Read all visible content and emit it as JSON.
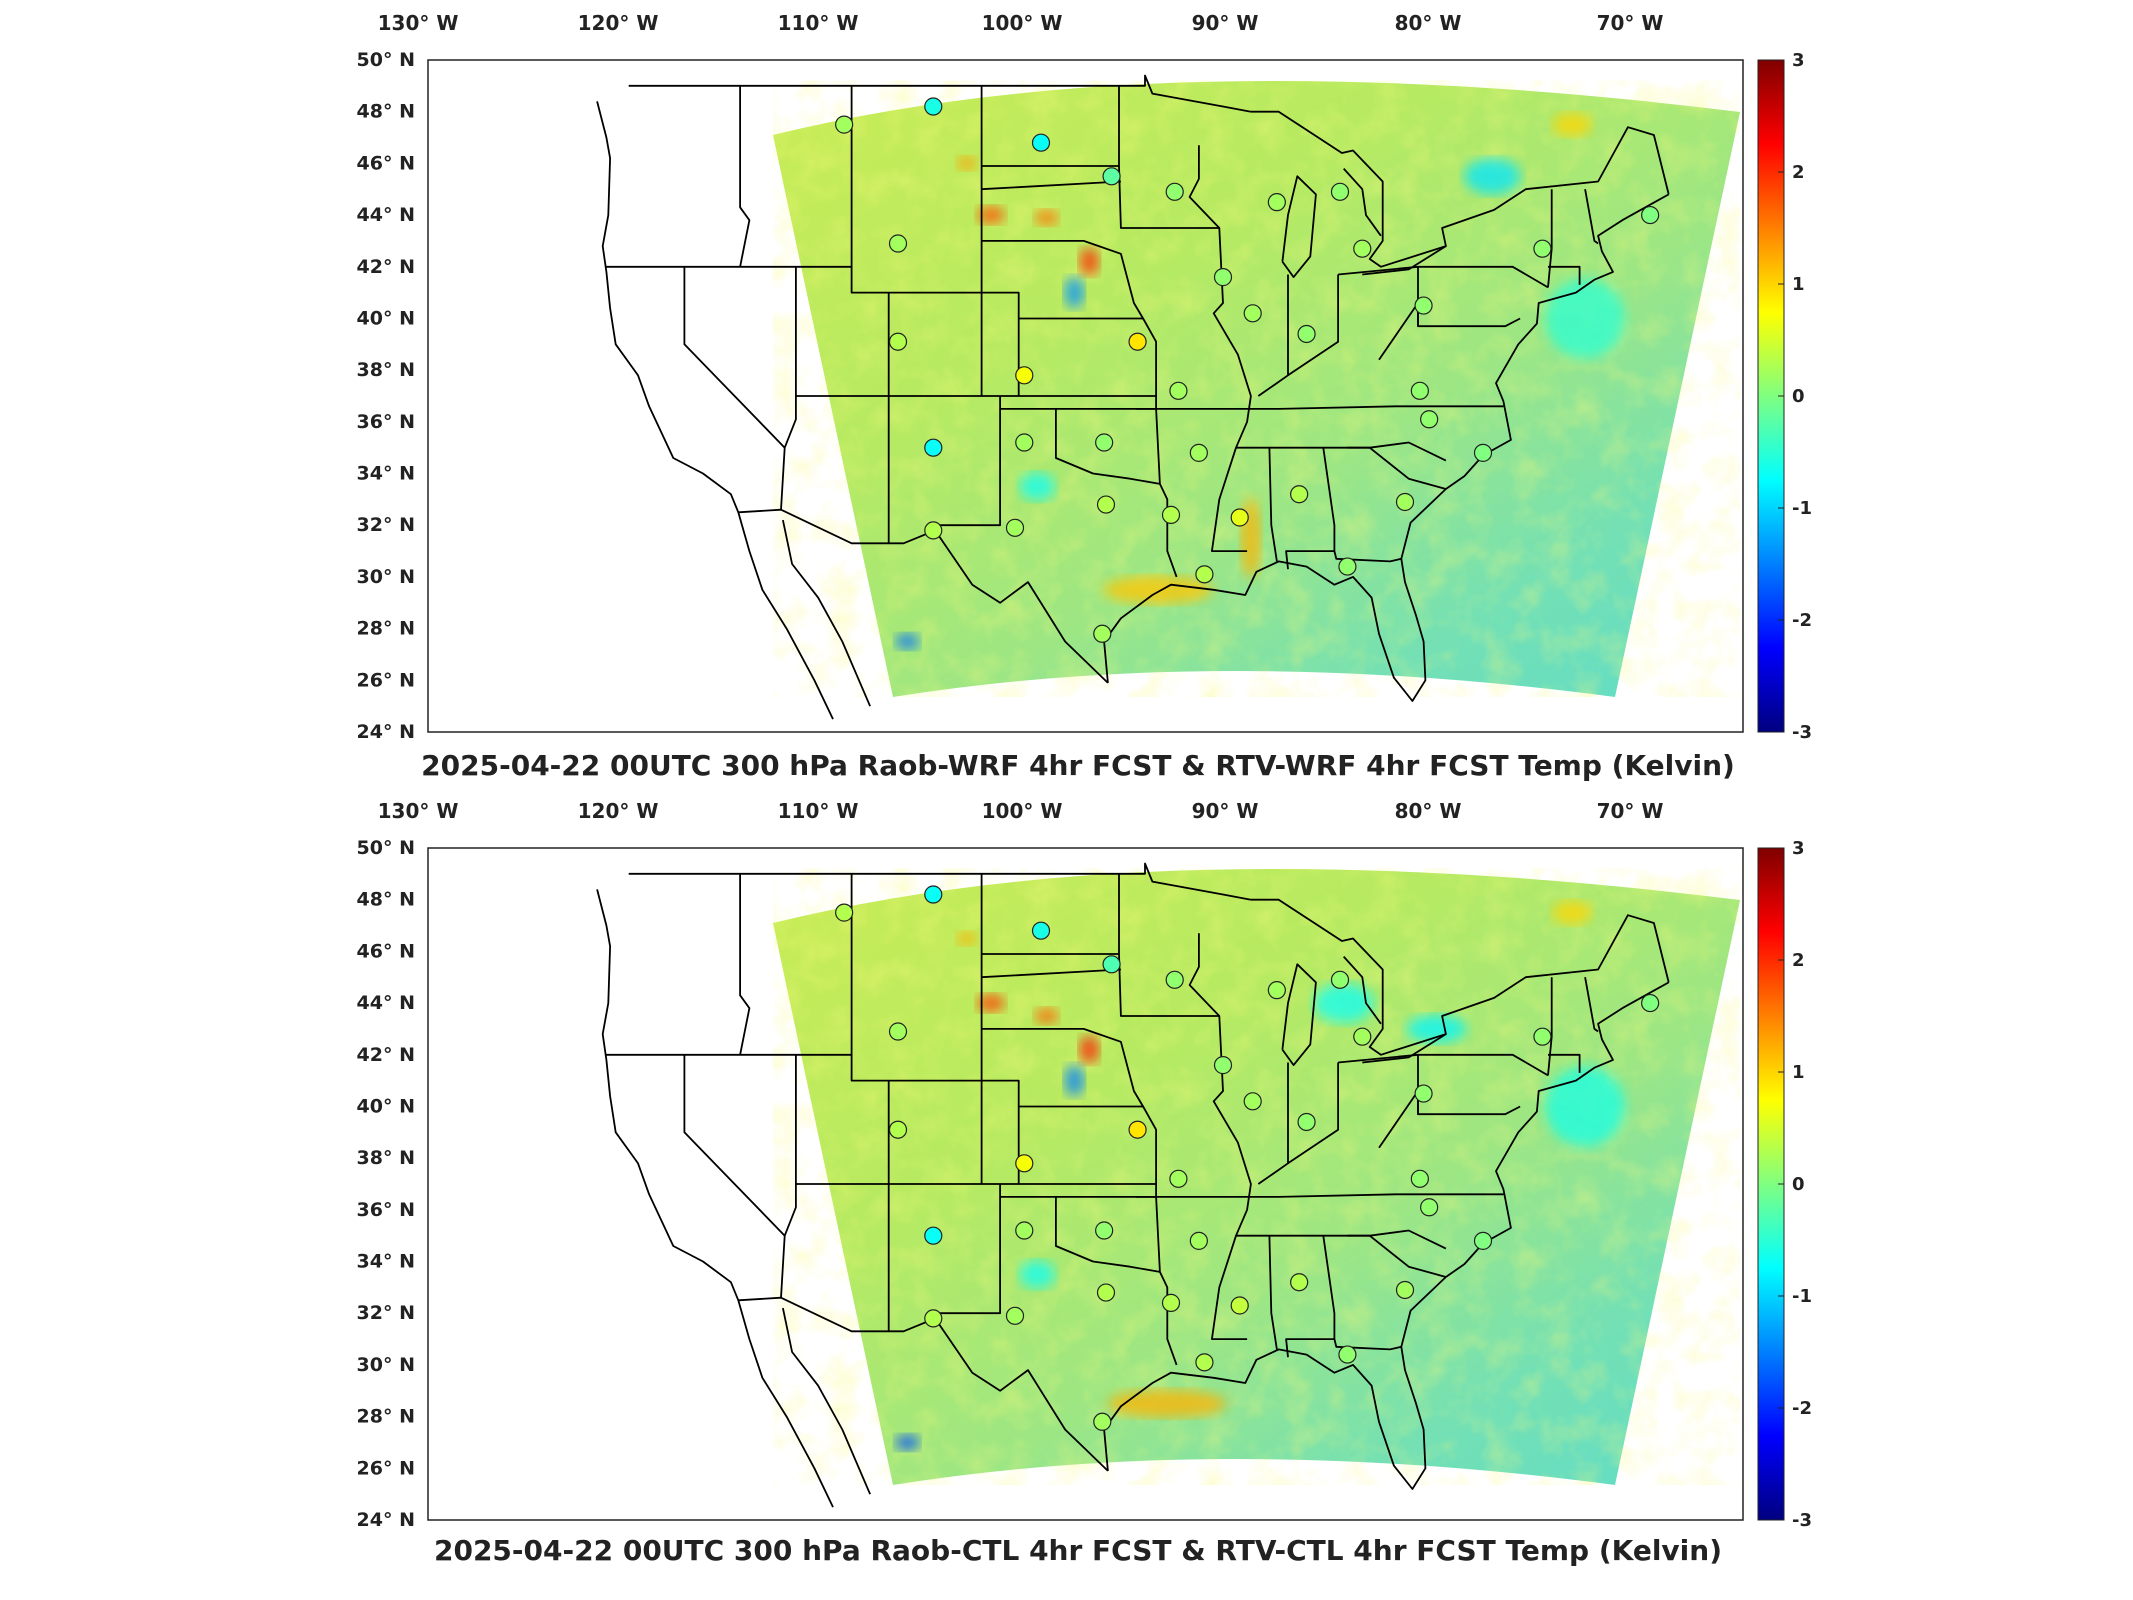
{
  "panels": [
    {
      "title": "2025-04-22 00UTC 300 hPa Raob-WRF 4hr FCST & RTV-WRF 4hr FCST Temp (Kelvin)"
    },
    {
      "title": "2025-04-22 00UTC 300 hPa Raob-CTL 4hr FCST & RTV-CTL 4hr FCST Temp (Kelvin)"
    }
  ],
  "map": {
    "region": "CONUS",
    "projection": "Lambert conformal",
    "extent": {
      "lon": [
        -133,
        -63
      ],
      "lat": [
        24,
        50
      ]
    },
    "lon_ticks": [
      "130",
      "120",
      "110",
      "100",
      "90",
      "80",
      "70"
    ],
    "lon_suffix": "W",
    "lat_ticks": [
      "50",
      "48",
      "46",
      "44",
      "42",
      "40",
      "38",
      "36",
      "34",
      "32",
      "30",
      "28",
      "26",
      "24"
    ],
    "lat_suffix": "N",
    "degree_symbol": "°",
    "ocean_color": "#ffffff",
    "border_color": "#000000"
  },
  "colorbar": {
    "colormap": "jet",
    "min": -3,
    "max": 3,
    "tick_labels": [
      "3",
      "2",
      "1",
      "0",
      "-1",
      "-2",
      "-3"
    ]
  },
  "raob_stations": [
    {
      "lon": -111.4,
      "lat": 47.5,
      "panel1": 0.2,
      "panel2": 0.3
    },
    {
      "lon": -106.6,
      "lat": 48.2,
      "panel1": -0.6,
      "panel2": -0.7
    },
    {
      "lon": -100.8,
      "lat": 46.8,
      "panel1": -0.7,
      "panel2": -0.6
    },
    {
      "lon": -97.0,
      "lat": 45.5,
      "panel1": -0.2,
      "panel2": -0.3
    },
    {
      "lon": -93.6,
      "lat": 44.9,
      "panel1": 0.1,
      "panel2": 0.1
    },
    {
      "lon": -88.1,
      "lat": 44.5,
      "panel1": 0.2,
      "panel2": 0.2
    },
    {
      "lon": -84.7,
      "lat": 44.9,
      "panel1": 0.1,
      "panel2": 0.1
    },
    {
      "lon": -68.0,
      "lat": 44.0,
      "panel1": 0.0,
      "panel2": 0.0
    },
    {
      "lon": -108.5,
      "lat": 42.9,
      "panel1": 0.2,
      "panel2": 0.2
    },
    {
      "lon": -83.5,
      "lat": 42.7,
      "panel1": 0.2,
      "panel2": 0.2
    },
    {
      "lon": -73.8,
      "lat": 42.7,
      "panel1": 0.1,
      "panel2": 0.1
    },
    {
      "lon": -91.0,
      "lat": 41.6,
      "panel1": 0.1,
      "panel2": 0.1
    },
    {
      "lon": -89.4,
      "lat": 40.2,
      "panel1": 0.2,
      "panel2": 0.2
    },
    {
      "lon": -80.2,
      "lat": 40.5,
      "panel1": 0.1,
      "panel2": 0.1
    },
    {
      "lon": -108.5,
      "lat": 39.1,
      "panel1": 0.3,
      "panel2": 0.3
    },
    {
      "lon": -95.6,
      "lat": 39.1,
      "panel1": 0.9,
      "panel2": 0.9
    },
    {
      "lon": -86.5,
      "lat": 39.4,
      "panel1": 0.1,
      "panel2": 0.1
    },
    {
      "lon": -101.7,
      "lat": 37.8,
      "panel1": 0.7,
      "panel2": 0.7
    },
    {
      "lon": -93.4,
      "lat": 37.2,
      "panel1": 0.2,
      "panel2": 0.2
    },
    {
      "lon": -80.4,
      "lat": 37.2,
      "panel1": 0.1,
      "panel2": 0.1
    },
    {
      "lon": -79.9,
      "lat": 36.1,
      "panel1": 0.1,
      "panel2": 0.1
    },
    {
      "lon": -106.6,
      "lat": 35.0,
      "panel1": -0.7,
      "panel2": -0.7
    },
    {
      "lon": -101.7,
      "lat": 35.2,
      "panel1": 0.2,
      "panel2": 0.2
    },
    {
      "lon": -97.4,
      "lat": 35.2,
      "panel1": 0.1,
      "panel2": 0.1
    },
    {
      "lon": -92.3,
      "lat": 34.8,
      "panel1": 0.2,
      "panel2": 0.2
    },
    {
      "lon": -77.0,
      "lat": 34.8,
      "panel1": 0.0,
      "panel2": 0.0
    },
    {
      "lon": -86.9,
      "lat": 33.2,
      "panel1": 0.3,
      "panel2": 0.3
    },
    {
      "lon": -97.3,
      "lat": 32.8,
      "panel1": 0.3,
      "panel2": 0.3
    },
    {
      "lon": -81.2,
      "lat": 32.9,
      "panel1": 0.2,
      "panel2": 0.2
    },
    {
      "lon": -106.6,
      "lat": 31.8,
      "panel1": 0.3,
      "panel2": 0.3
    },
    {
      "lon": -102.2,
      "lat": 31.9,
      "panel1": 0.2,
      "panel2": 0.2
    },
    {
      "lon": -93.8,
      "lat": 32.4,
      "panel1": 0.3,
      "panel2": 0.3
    },
    {
      "lon": -90.1,
      "lat": 32.3,
      "panel1": 0.6,
      "panel2": 0.4
    },
    {
      "lon": -92.0,
      "lat": 30.1,
      "panel1": 0.3,
      "panel2": 0.3
    },
    {
      "lon": -84.3,
      "lat": 30.4,
      "panel1": 0.1,
      "panel2": 0.1
    },
    {
      "lon": -97.5,
      "lat": 27.8,
      "panel1": 0.2,
      "panel2": 0.2
    }
  ]
}
